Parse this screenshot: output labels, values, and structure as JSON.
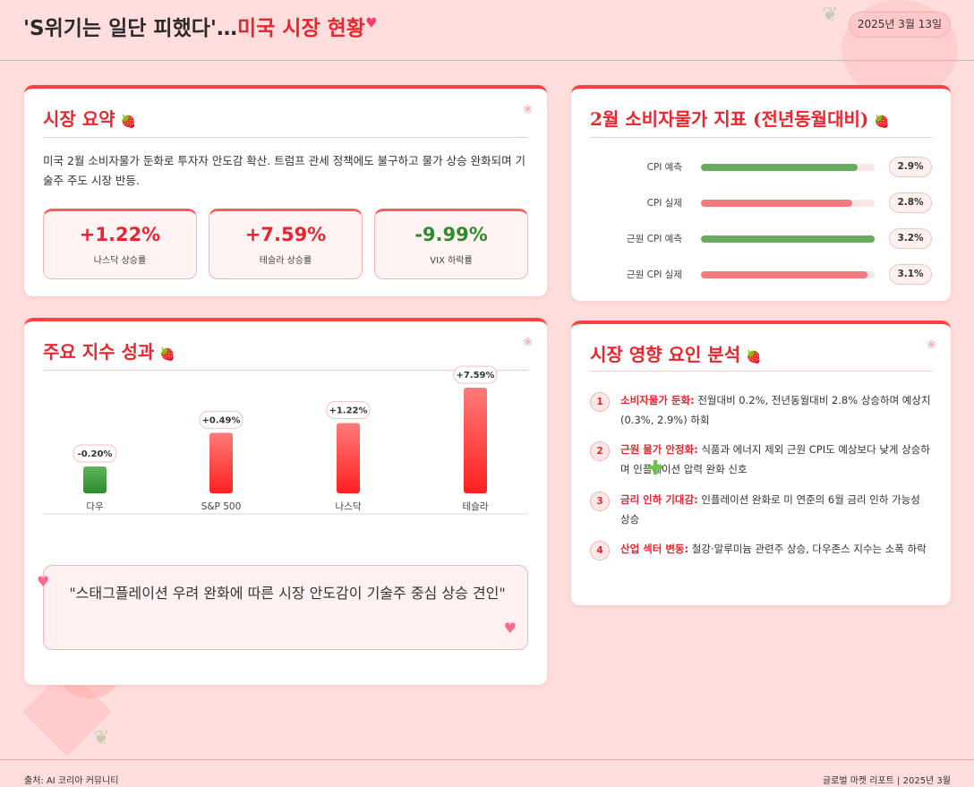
{
  "header": {
    "title_main": "'S위기는 일단 피했다'…",
    "title_accent": "미국 시장 현황",
    "date": "2025년 3월 13일"
  },
  "summary": {
    "title": "시장 요약",
    "text": "미국 2월 소비자물가 둔화로 투자자 안도감 확산. 트럼프 관세 정책에도 불구하고 물가 상승 완화되며 기술주 주도 시장 반등.",
    "stats": [
      {
        "value": "+1.22%",
        "label": "나스닥 상승률",
        "color": "#e8262d"
      },
      {
        "value": "+7.59%",
        "label": "테슬라 상승률",
        "color": "#e8262d"
      },
      {
        "value": "-9.99%",
        "label": "VIX 하락률",
        "color": "#2e8b2e"
      }
    ]
  },
  "cpi": {
    "title": "2월 소비자물가 지표 (전년동월대비)",
    "rows": [
      {
        "label": "CPI 예측",
        "value": "2.9%",
        "level": 0.9,
        "color": "#6aab5f"
      },
      {
        "label": "CPI 실제",
        "value": "2.8%",
        "level": 0.87,
        "color": "#f47b7b"
      },
      {
        "label": "근원 CPI 예측",
        "value": "3.2%",
        "level": 1.0,
        "color": "#6aab5f"
      },
      {
        "label": "근원 CPI 실제",
        "value": "3.1%",
        "level": 0.96,
        "color": "#f47b7b"
      }
    ]
  },
  "indices": {
    "title": "주요 지수 성과",
    "quote": "\"스태그플레이션 우려 완화에 따른 시장 안도감이 기술주 중심 상승 견인\""
  },
  "chart_data": {
    "type": "bar",
    "categories": [
      "다우",
      "S&P 500",
      "나스닥",
      "테슬라"
    ],
    "values": [
      -0.2,
      0.49,
      1.22,
      7.59
    ],
    "data_labels": [
      "-0.20%",
      "+0.49%",
      "+1.22%",
      "+7.59%"
    ],
    "positive_color": "#ff3b3b",
    "negative_color": "#3f9a3f",
    "grid": false
  },
  "factors": {
    "title": "시장 영향 요인 분석",
    "items": [
      {
        "num": "1",
        "title": "소비자물가 둔화:",
        "text": " 전월대비 0.2%, 전년동월대비 2.8% 상승하며 예상치(0.3%, 2.9%) 하회"
      },
      {
        "num": "2",
        "title": "근원 물가 안정화:",
        "text": " 식품과 에너지 제외 근원 CPI도 예상보다 낮게 상승하며 인플레이션 압력 완화 신호"
      },
      {
        "num": "3",
        "title": "금리 인하 기대감:",
        "text": " 인플레이션 완화로 미 연준의 6월 금리 인하 가능성 상승"
      },
      {
        "num": "4",
        "title": "산업 섹터 변동:",
        "text": " 철강·알루미늄 관련주 상승, 다우존스 지수는 소폭 하락"
      }
    ]
  },
  "footer": {
    "source": "출처: AI 코리아 커뮤니티",
    "report": "글로벌 마켓 리포트 | 2025년 3월"
  }
}
